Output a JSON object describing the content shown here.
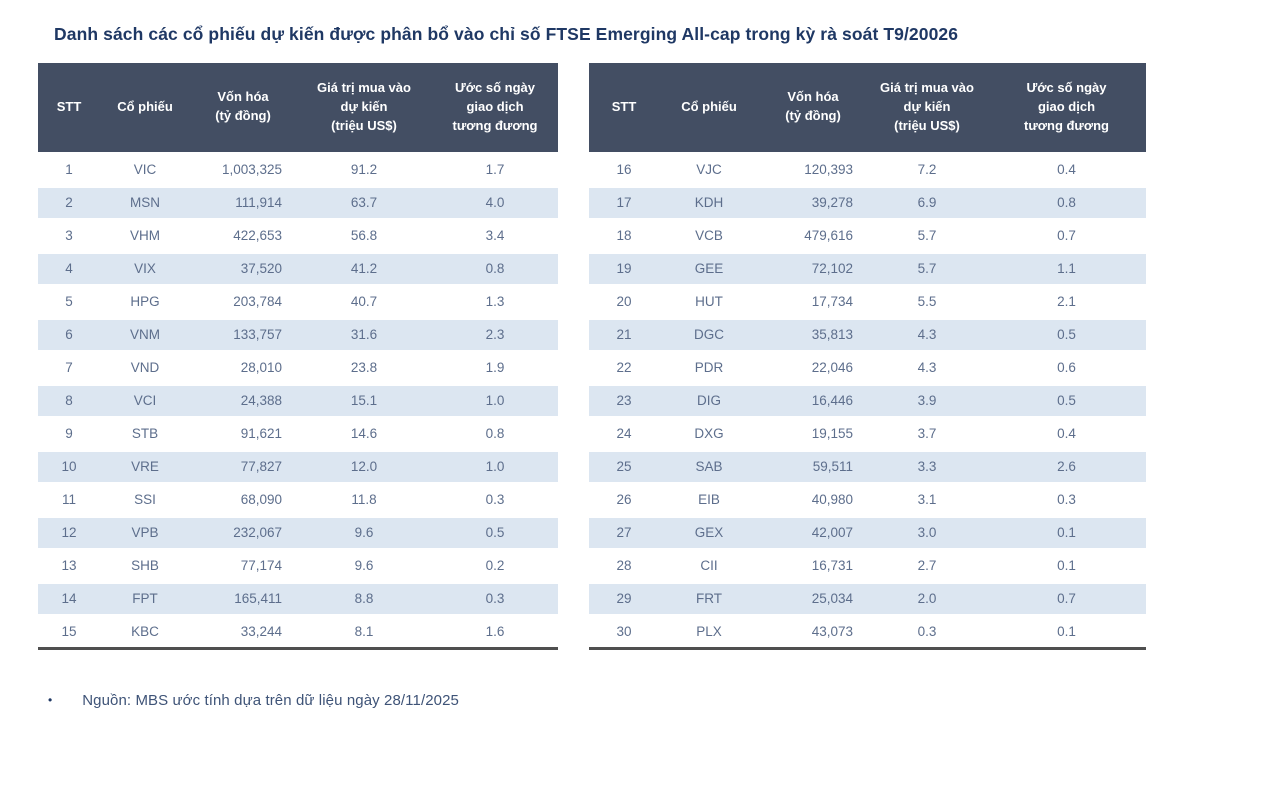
{
  "title": "Danh sách các cổ phiếu dự kiến được phân bổ vào chỉ số FTSE Emerging All-cap trong kỳ rà soát T9/20026",
  "table": {
    "columns": [
      "STT",
      "Cổ phiếu",
      "Vốn hóa\n(tỷ đồng)",
      "Giá trị mua vào\ndự kiến\n(triệu US$)",
      "Ước số ngày\ngiao dịch\ntương đương"
    ]
  },
  "left_rows": [
    [
      "1",
      "VIC",
      "1,003,325",
      "91.2",
      "1.7"
    ],
    [
      "2",
      "MSN",
      "111,914",
      "63.7",
      "4.0"
    ],
    [
      "3",
      "VHM",
      "422,653",
      "56.8",
      "3.4"
    ],
    [
      "4",
      "VIX",
      "37,520",
      "41.2",
      "0.8"
    ],
    [
      "5",
      "HPG",
      "203,784",
      "40.7",
      "1.3"
    ],
    [
      "6",
      "VNM",
      "133,757",
      "31.6",
      "2.3"
    ],
    [
      "7",
      "VND",
      "28,010",
      "23.8",
      "1.9"
    ],
    [
      "8",
      "VCI",
      "24,388",
      "15.1",
      "1.0"
    ],
    [
      "9",
      "STB",
      "91,621",
      "14.6",
      "0.8"
    ],
    [
      "10",
      "VRE",
      "77,827",
      "12.0",
      "1.0"
    ],
    [
      "11",
      "SSI",
      "68,090",
      "11.8",
      "0.3"
    ],
    [
      "12",
      "VPB",
      "232,067",
      "9.6",
      "0.5"
    ],
    [
      "13",
      "SHB",
      "77,174",
      "9.6",
      "0.2"
    ],
    [
      "14",
      "FPT",
      "165,411",
      "8.8",
      "0.3"
    ],
    [
      "15",
      "KBC",
      "33,244",
      "8.1",
      "1.6"
    ]
  ],
  "right_rows": [
    [
      "16",
      "VJC",
      "120,393",
      "7.2",
      "0.4"
    ],
    [
      "17",
      "KDH",
      "39,278",
      "6.9",
      "0.8"
    ],
    [
      "18",
      "VCB",
      "479,616",
      "5.7",
      "0.7"
    ],
    [
      "19",
      "GEE",
      "72,102",
      "5.7",
      "1.1"
    ],
    [
      "20",
      "HUT",
      "17,734",
      "5.5",
      "2.1"
    ],
    [
      "21",
      "DGC",
      "35,813",
      "4.3",
      "0.5"
    ],
    [
      "22",
      "PDR",
      "22,046",
      "4.3",
      "0.6"
    ],
    [
      "23",
      "DIG",
      "16,446",
      "3.9",
      "0.5"
    ],
    [
      "24",
      "DXG",
      "19,155",
      "3.7",
      "0.4"
    ],
    [
      "25",
      "SAB",
      "59,511",
      "3.3",
      "2.6"
    ],
    [
      "26",
      "EIB",
      "40,980",
      "3.1",
      "0.3"
    ],
    [
      "27",
      "GEX",
      "42,007",
      "3.0",
      "0.1"
    ],
    [
      "28",
      "CII",
      "16,731",
      "2.7",
      "0.1"
    ],
    [
      "29",
      "FRT",
      "25,034",
      "2.0",
      "0.7"
    ],
    [
      "30",
      "PLX",
      "43,073",
      "0.3",
      "0.1"
    ]
  ],
  "footer": {
    "bullet": "•",
    "source": "Nguồn: MBS ước tính dựa trên dữ liệu ngày 28/11/2025"
  },
  "colors": {
    "header_bg": "#434e63",
    "alt_row_bg": "#dce6f1",
    "title": "#1f3864",
    "cell_text": "#5d6e8c",
    "footer_text": "#3e5377",
    "table_bottom_border": "#4f4f4f"
  }
}
